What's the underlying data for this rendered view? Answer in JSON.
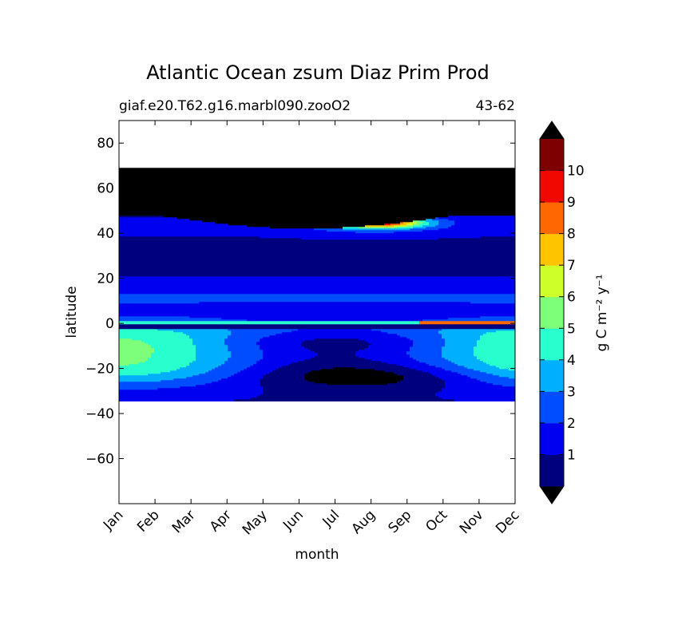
{
  "chart_data": {
    "type": "heatmap",
    "title": "Atlantic Ocean zsum Diaz Prim Prod",
    "subtitle_left": "giaf.e20.T62.g16.marbl090.zooO2",
    "subtitle_right": "43-62",
    "xlabel": "month",
    "ylabel": "latitude",
    "x_ticks": [
      "Jan",
      "Feb",
      "Mar",
      "Apr",
      "May",
      "Jun",
      "Jul",
      "Aug",
      "Sep",
      "Oct",
      "Nov",
      "Dec"
    ],
    "y_ticks": [
      -60,
      -40,
      -20,
      0,
      20,
      40,
      60,
      80
    ],
    "ylim": [
      -80,
      90
    ],
    "data_lat_range": [
      -34,
      69
    ],
    "colorbar": {
      "label": "g C m⁻² y⁻¹",
      "levels": [
        0,
        1,
        2,
        3,
        4,
        5,
        6,
        7,
        8,
        9,
        10,
        11
      ],
      "tick_labels": [
        "1",
        "2",
        "3",
        "4",
        "5",
        "6",
        "7",
        "8",
        "9",
        "10"
      ],
      "colors": [
        "#00007f",
        "#0000f1",
        "#004cff",
        "#00b0ff",
        "#29ffce",
        "#7dff7a",
        "#ceff29",
        "#ffc400",
        "#ff6800",
        "#f10800",
        "#7f0000"
      ],
      "under_color": "#000000",
      "over_color": "#000000",
      "extend": "both"
    }
  }
}
